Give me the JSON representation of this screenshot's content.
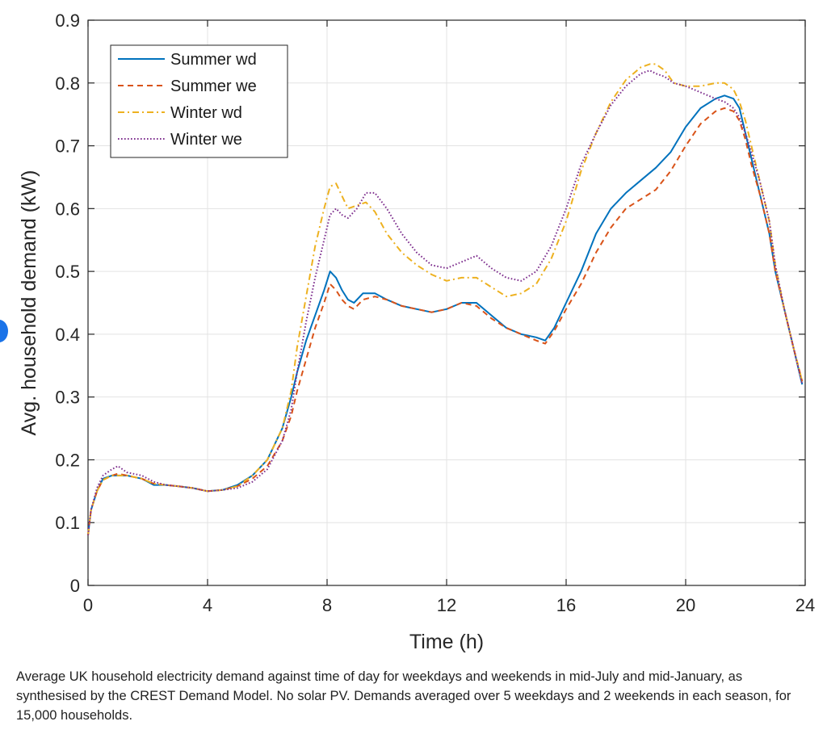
{
  "caption": "Average UK household electricity demand against time of day for weekdays and weekends in mid-July and mid-January, as synthesised by the CREST Demand Model. No solar PV. Demands averaged over 5 weekdays and 2 weekends in each season, for 15,000 households.",
  "chart_data": {
    "type": "line",
    "title": "",
    "xlabel": "Time (h)",
    "ylabel": "Avg. household demand (kW)",
    "xlim": [
      0,
      24
    ],
    "ylim": [
      0,
      0.9
    ],
    "xticks": [
      0,
      4,
      8,
      12,
      16,
      20,
      24
    ],
    "yticks": [
      0,
      0.1,
      0.2,
      0.3,
      0.4,
      0.5,
      0.6,
      0.7,
      0.8,
      0.9
    ],
    "ytick_labels": [
      "0",
      "0.1",
      "0.2",
      "0.3",
      "0.4",
      "0.5",
      "0.6",
      "0.7",
      "0.8",
      "0.9"
    ],
    "grid": true,
    "legend_position": "top-left",
    "series": [
      {
        "name": "Summer wd",
        "color": "#0072bd",
        "style": "solid",
        "x": [
          0,
          0.1,
          0.3,
          0.5,
          0.8,
          1.0,
          1.3,
          1.8,
          2.2,
          2.6,
          3.0,
          3.5,
          4.0,
          4.5,
          5.0,
          5.5,
          6.0,
          6.5,
          6.8,
          7.0,
          7.3,
          7.6,
          7.9,
          8.1,
          8.3,
          8.5,
          8.7,
          8.9,
          9.2,
          9.6,
          10.0,
          10.5,
          11.0,
          11.5,
          12.0,
          12.5,
          13.0,
          13.5,
          14.0,
          14.5,
          15.0,
          15.3,
          15.6,
          16.0,
          16.5,
          17.0,
          17.5,
          18.0,
          18.5,
          19.0,
          19.5,
          20.0,
          20.5,
          21.0,
          21.3,
          21.6,
          21.8,
          22.0,
          22.2,
          22.5,
          22.8,
          23.0,
          23.3,
          23.6,
          23.9
        ],
        "y": [
          0.08,
          0.12,
          0.15,
          0.17,
          0.175,
          0.175,
          0.175,
          0.17,
          0.16,
          0.16,
          0.158,
          0.155,
          0.15,
          0.152,
          0.16,
          0.175,
          0.2,
          0.25,
          0.3,
          0.34,
          0.39,
          0.43,
          0.47,
          0.5,
          0.49,
          0.47,
          0.455,
          0.45,
          0.465,
          0.465,
          0.455,
          0.445,
          0.44,
          0.435,
          0.44,
          0.45,
          0.45,
          0.43,
          0.41,
          0.4,
          0.395,
          0.39,
          0.41,
          0.45,
          0.5,
          0.56,
          0.6,
          0.625,
          0.645,
          0.665,
          0.69,
          0.73,
          0.76,
          0.775,
          0.78,
          0.775,
          0.76,
          0.72,
          0.68,
          0.62,
          0.56,
          0.5,
          0.44,
          0.38,
          0.32
        ]
      },
      {
        "name": "Summer we",
        "color": "#d95319",
        "style": "dashed",
        "x": [
          0,
          0.1,
          0.3,
          0.5,
          0.8,
          1.0,
          1.3,
          1.8,
          2.2,
          2.6,
          3.0,
          3.5,
          4.0,
          4.5,
          5.0,
          5.5,
          6.0,
          6.5,
          6.8,
          7.0,
          7.3,
          7.6,
          7.9,
          8.1,
          8.3,
          8.5,
          8.7,
          8.9,
          9.2,
          9.6,
          10.0,
          10.5,
          11.0,
          11.5,
          12.0,
          12.5,
          13.0,
          13.5,
          14.0,
          14.5,
          15.0,
          15.3,
          15.6,
          16.0,
          16.5,
          17.0,
          17.5,
          18.0,
          18.5,
          19.0,
          19.5,
          20.0,
          20.5,
          21.0,
          21.3,
          21.6,
          21.8,
          22.0,
          22.2,
          22.5,
          22.8,
          23.0,
          23.3,
          23.6,
          23.9
        ],
        "y": [
          0.08,
          0.12,
          0.15,
          0.168,
          0.175,
          0.178,
          0.175,
          0.17,
          0.162,
          0.16,
          0.158,
          0.155,
          0.15,
          0.152,
          0.158,
          0.17,
          0.19,
          0.23,
          0.27,
          0.31,
          0.36,
          0.41,
          0.45,
          0.48,
          0.47,
          0.455,
          0.445,
          0.44,
          0.455,
          0.46,
          0.455,
          0.445,
          0.44,
          0.435,
          0.44,
          0.45,
          0.445,
          0.425,
          0.41,
          0.4,
          0.39,
          0.385,
          0.405,
          0.44,
          0.48,
          0.53,
          0.57,
          0.6,
          0.615,
          0.63,
          0.66,
          0.7,
          0.735,
          0.755,
          0.76,
          0.755,
          0.74,
          0.71,
          0.67,
          0.62,
          0.56,
          0.5,
          0.44,
          0.38,
          0.325
        ]
      },
      {
        "name": "Winter wd",
        "color": "#edb120",
        "style": "dashdot",
        "x": [
          0,
          0.1,
          0.3,
          0.5,
          0.8,
          1.0,
          1.3,
          1.8,
          2.2,
          2.6,
          3.0,
          3.5,
          4.0,
          4.5,
          5.0,
          5.5,
          6.0,
          6.5,
          6.8,
          7.0,
          7.3,
          7.6,
          7.9,
          8.1,
          8.3,
          8.5,
          8.7,
          9.0,
          9.3,
          9.6,
          10.0,
          10.5,
          11.0,
          11.5,
          12.0,
          12.5,
          13.0,
          13.5,
          14.0,
          14.5,
          15.0,
          15.5,
          16.0,
          16.5,
          17.0,
          17.5,
          18.0,
          18.5,
          18.8,
          19.0,
          19.3,
          19.6,
          20.0,
          20.5,
          21.0,
          21.3,
          21.6,
          21.8,
          22.0,
          22.2,
          22.5,
          22.8,
          23.0,
          23.3,
          23.6,
          23.9
        ],
        "y": [
          0.08,
          0.12,
          0.15,
          0.168,
          0.175,
          0.175,
          0.175,
          0.17,
          0.162,
          0.16,
          0.158,
          0.155,
          0.15,
          0.152,
          0.158,
          0.175,
          0.2,
          0.25,
          0.31,
          0.38,
          0.46,
          0.54,
          0.6,
          0.635,
          0.64,
          0.62,
          0.6,
          0.605,
          0.61,
          0.595,
          0.56,
          0.53,
          0.51,
          0.495,
          0.485,
          0.49,
          0.49,
          0.475,
          0.46,
          0.465,
          0.48,
          0.52,
          0.58,
          0.66,
          0.72,
          0.77,
          0.805,
          0.825,
          0.83,
          0.83,
          0.82,
          0.8,
          0.795,
          0.795,
          0.8,
          0.8,
          0.79,
          0.77,
          0.74,
          0.7,
          0.64,
          0.58,
          0.51,
          0.44,
          0.38,
          0.325
        ]
      },
      {
        "name": "Winter we",
        "color": "#7e2f8e",
        "style": "dotted",
        "x": [
          0,
          0.1,
          0.3,
          0.5,
          0.8,
          1.0,
          1.3,
          1.8,
          2.2,
          2.6,
          3.0,
          3.5,
          4.0,
          4.5,
          5.0,
          5.5,
          6.0,
          6.5,
          6.8,
          7.0,
          7.3,
          7.6,
          7.9,
          8.1,
          8.3,
          8.5,
          8.7,
          9.0,
          9.3,
          9.6,
          10.0,
          10.5,
          11.0,
          11.5,
          12.0,
          12.5,
          13.0,
          13.5,
          14.0,
          14.5,
          15.0,
          15.5,
          16.0,
          16.5,
          17.0,
          17.5,
          18.0,
          18.5,
          18.8,
          19.0,
          19.3,
          19.6,
          20.0,
          20.5,
          21.0,
          21.3,
          21.6,
          21.8,
          22.0,
          22.2,
          22.5,
          22.8,
          23.0,
          23.3,
          23.6,
          23.9
        ],
        "y": [
          0.08,
          0.12,
          0.155,
          0.175,
          0.185,
          0.19,
          0.18,
          0.175,
          0.165,
          0.16,
          0.158,
          0.155,
          0.15,
          0.152,
          0.155,
          0.165,
          0.185,
          0.23,
          0.28,
          0.34,
          0.42,
          0.49,
          0.55,
          0.59,
          0.6,
          0.59,
          0.585,
          0.6,
          0.625,
          0.625,
          0.6,
          0.56,
          0.53,
          0.51,
          0.505,
          0.515,
          0.525,
          0.505,
          0.49,
          0.485,
          0.5,
          0.54,
          0.6,
          0.67,
          0.72,
          0.765,
          0.795,
          0.815,
          0.82,
          0.815,
          0.81,
          0.8,
          0.795,
          0.785,
          0.775,
          0.77,
          0.76,
          0.745,
          0.72,
          0.69,
          0.64,
          0.58,
          0.51,
          0.44,
          0.38,
          0.32
        ]
      }
    ]
  }
}
